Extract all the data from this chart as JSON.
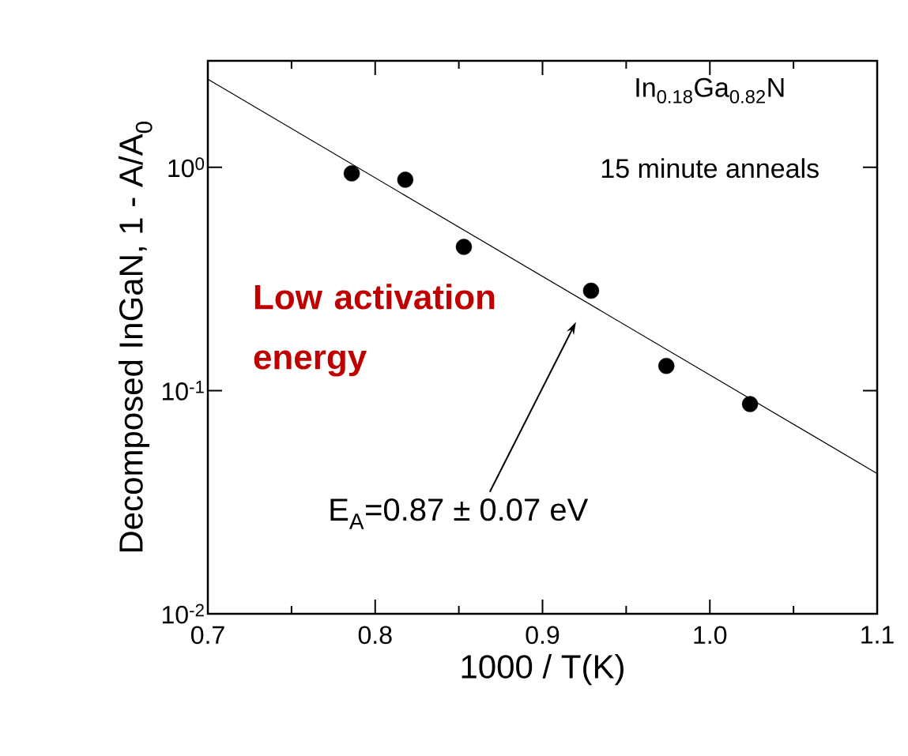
{
  "chart_data": {
    "type": "scatter",
    "log": "y",
    "xlabel": "1000 / T(K)",
    "ylabel": "Decomposed InGaN, 1 - A/A$_{0}$",
    "xlim": [
      0.7,
      1.1
    ],
    "ylim": [
      0.01,
      3
    ],
    "xticks": [
      0.7,
      0.8,
      0.9,
      {
        "value": 1.0,
        "label": "1.0"
      },
      1.1
    ],
    "yticks": [
      {
        "value": 0.01,
        "label": "10$^{-2}$"
      },
      {
        "value": 0.1,
        "label": "10$^{-1}$"
      },
      {
        "value": 1,
        "label": "10$^{0}$"
      }
    ],
    "series": [
      {
        "marker": "circle",
        "color": "#000000",
        "x": [
          0.786,
          0.818,
          0.853,
          0.929,
          0.974,
          1.024
        ],
        "values": [
          0.94,
          0.88,
          0.44,
          0.28,
          0.129,
          0.087
        ]
      },
      {
        "type": "line",
        "marker": "none",
        "color": "#000000",
        "x": [
          0.7,
          1.1
        ],
        "values": [
          2.48,
          0.0425
        ]
      }
    ],
    "annotations": [
      "In$_{0.18}$Ga$_{0.82}$N",
      "15 minute anneals",
      "Low activation energy",
      "E$_{A}$=0.87 ± 0.07 eV"
    ]
  }
}
